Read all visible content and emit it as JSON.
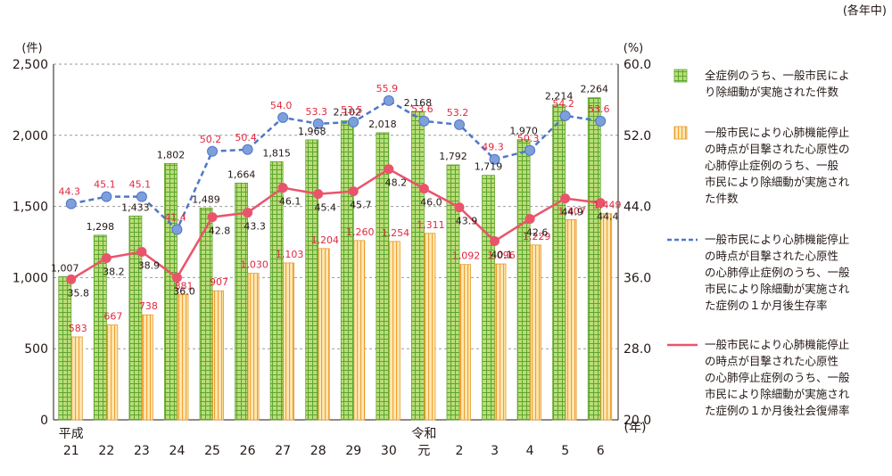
{
  "note": "(各年中)",
  "chart_data": {
    "type": "bar",
    "categories": [
      {
        "top": "平成",
        "bottom": "21"
      },
      {
        "top": "",
        "bottom": "22"
      },
      {
        "top": "",
        "bottom": "23"
      },
      {
        "top": "",
        "bottom": "24"
      },
      {
        "top": "",
        "bottom": "25"
      },
      {
        "top": "",
        "bottom": "26"
      },
      {
        "top": "",
        "bottom": "27"
      },
      {
        "top": "",
        "bottom": "28"
      },
      {
        "top": "",
        "bottom": "29"
      },
      {
        "top": "",
        "bottom": "30"
      },
      {
        "top": "令和",
        "bottom": "元"
      },
      {
        "top": "",
        "bottom": "2"
      },
      {
        "top": "",
        "bottom": "3"
      },
      {
        "top": "",
        "bottom": "4"
      },
      {
        "top": "",
        "bottom": "5"
      },
      {
        "top": "",
        "bottom": "6"
      }
    ],
    "x_unit": "(年)",
    "y_left": {
      "unit": "(件)",
      "range": [
        0,
        2500
      ],
      "ticks": [
        "0",
        "500",
        "1,000",
        "1,500",
        "2,000",
        "2,500"
      ]
    },
    "y_right": {
      "unit": "(%)",
      "range": [
        20,
        60
      ],
      "ticks": [
        "20.0",
        "28.0",
        "36.0",
        "44.0",
        "52.0",
        "60.0"
      ]
    },
    "grid": "horizontal-dashed",
    "legend_position": "right",
    "series": [
      {
        "name": "全症例のうち、一般市民により除細動が実施された件数",
        "kind": "bar",
        "axis": "left",
        "color": "#8cc63f",
        "values": [
          1007,
          1298,
          1433,
          1802,
          1489,
          1664,
          1815,
          1968,
          2102,
          2018,
          2168,
          1792,
          1719,
          1970,
          2214,
          2264
        ],
        "labels": [
          "1,007",
          "1,298",
          "1,433",
          "1,802",
          "1,489",
          "1,664",
          "1,815",
          "1,968",
          "2,102",
          "2,018",
          "2,168",
          "1,792",
          "1,719",
          "1,970",
          "2,214",
          "2,264"
        ]
      },
      {
        "name": "一般市民により心肺機能停止の時点が目撃された心原性の心肺停止症例のうち、一般市民により除細動が実施された件数",
        "kind": "bar",
        "axis": "left",
        "color": "#f5b335",
        "values": [
          583,
          667,
          738,
          881,
          907,
          1030,
          1103,
          1204,
          1260,
          1254,
          1311,
          1092,
          1096,
          1229,
          1407,
          1449
        ],
        "labels": [
          "583",
          "667",
          "738",
          "881",
          "907",
          "1,030",
          "1,103",
          "1,204",
          "1,260",
          "1,254",
          "1,311",
          "1,092",
          "1,096",
          "1,229",
          "1,407",
          "1,449"
        ]
      },
      {
        "name": "一般市民により心肺機能停止の時点が目撃された心原性の心肺停止症例のうち、一般市民により除細動が実施された症例の１か月後生存率",
        "kind": "line-dashed",
        "axis": "right",
        "color": "#4f77c9",
        "values": [
          44.3,
          45.1,
          45.1,
          41.4,
          50.2,
          50.4,
          54.0,
          53.3,
          53.5,
          55.9,
          53.6,
          53.2,
          49.3,
          50.3,
          54.2,
          53.6
        ],
        "labels": [
          "44.3",
          "45.1",
          "45.1",
          "41.4",
          "50.2",
          "50.4",
          "54.0",
          "53.3",
          "53.5",
          "55.9",
          "53.6",
          "53.2",
          "49.3",
          "50.3",
          "54.2",
          "53.6"
        ]
      },
      {
        "name": "一般市民により心肺機能停止の時点が目撃された心原性の心肺停止症例のうち、一般市民により除細動が実施された症例の１か月後社会復帰率",
        "kind": "line",
        "axis": "right",
        "color": "#e9546b",
        "values": [
          35.8,
          38.2,
          38.9,
          36.0,
          42.8,
          43.3,
          46.1,
          45.4,
          45.7,
          48.2,
          46.0,
          43.9,
          40.1,
          42.6,
          44.9,
          44.4
        ],
        "labels": [
          "35.8",
          "38.2",
          "38.9",
          "36.0",
          "42.8",
          "43.3",
          "46.1",
          "45.4",
          "45.7",
          "48.2",
          "46.0",
          "43.9",
          "40.1",
          "42.6",
          "44.9",
          "44.4"
        ]
      }
    ],
    "legend": [
      {
        "lines": [
          "全症例のうち、一般市民によ",
          "り除細動が実施された件数"
        ]
      },
      {
        "lines": [
          "一般市民により心肺機能停止",
          "の時点が目撃された心原性の",
          "心肺停止症例のうち、一般",
          "市民により除細動が実施され",
          "た件数"
        ]
      },
      {
        "lines": [
          "一般市民により心肺機能停止",
          "の時点が目撃された心原性",
          "の心肺停止症例のうち、一般",
          "市民により除細動が実施され",
          "た症例の１か月後生存率"
        ]
      },
      {
        "lines": [
          "一般市民により心肺機能停止",
          "の時点が目撃された心原性",
          "の心肺停止症例のうち、一般",
          "市民により除細動が実施され",
          "た症例の１か月後社会復帰率"
        ]
      }
    ]
  }
}
